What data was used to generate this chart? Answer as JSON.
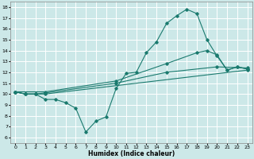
{
  "title": "",
  "xlabel": "Humidex (Indice chaleur)",
  "xlim": [
    -0.5,
    23.5
  ],
  "ylim": [
    5.5,
    18.5
  ],
  "xticks": [
    0,
    1,
    2,
    3,
    4,
    5,
    6,
    7,
    8,
    9,
    10,
    11,
    12,
    13,
    14,
    15,
    16,
    17,
    18,
    19,
    20,
    21,
    22,
    23
  ],
  "yticks": [
    6,
    7,
    8,
    9,
    10,
    11,
    12,
    13,
    14,
    15,
    16,
    17,
    18
  ],
  "bg_color": "#cce8e8",
  "grid_color": "#ffffff",
  "line_color": "#1a7a6e",
  "lines": [
    {
      "x": [
        0,
        1,
        2,
        3,
        4,
        5,
        6,
        7,
        8,
        9,
        10,
        11,
        12,
        13,
        14,
        15,
        16,
        17,
        18,
        19,
        20,
        21,
        22,
        23
      ],
      "y": [
        10.2,
        10.0,
        10.0,
        9.5,
        9.5,
        9.2,
        8.7,
        6.5,
        7.5,
        7.9,
        10.5,
        11.9,
        12.0,
        13.8,
        14.8,
        16.5,
        17.2,
        17.8,
        17.4,
        15.0,
        13.5,
        12.2,
        12.5,
        12.3
      ]
    },
    {
      "x": [
        0,
        1,
        2,
        3,
        23
      ],
      "y": [
        10.2,
        10.0,
        10.0,
        10.0,
        12.2
      ]
    },
    {
      "x": [
        0,
        1,
        2,
        3,
        10,
        15,
        20,
        23
      ],
      "y": [
        10.2,
        10.0,
        10.0,
        10.1,
        11.0,
        12.0,
        12.5,
        12.4
      ]
    },
    {
      "x": [
        0,
        3,
        10,
        15,
        18,
        19,
        20,
        21,
        22,
        23
      ],
      "y": [
        10.2,
        10.2,
        11.2,
        12.8,
        13.8,
        14.0,
        13.6,
        12.2,
        12.5,
        12.3
      ]
    }
  ],
  "figsize": [
    3.2,
    2.0
  ],
  "dpi": 100
}
